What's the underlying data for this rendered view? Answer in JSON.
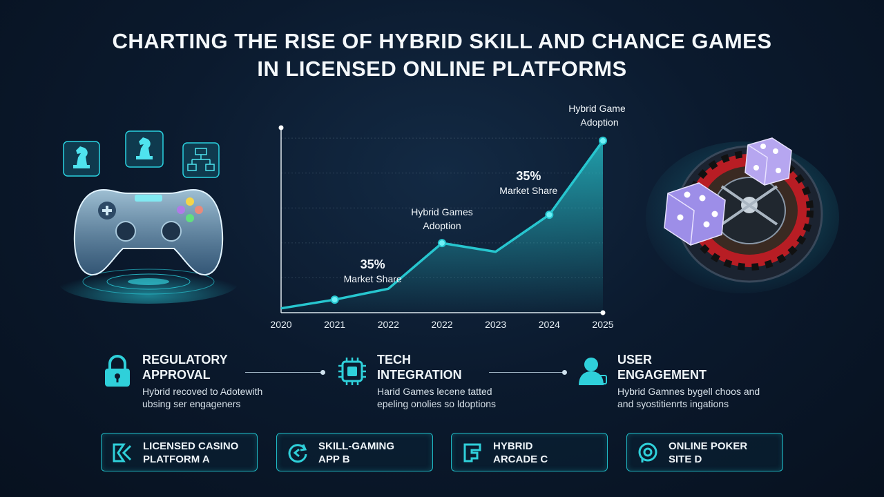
{
  "title": {
    "line1": "CHARTING THE RISE OF HYBRID SKILL AND CHANCE GAMES",
    "line2": "IN LICENSED ONLINE PLATFORMS"
  },
  "chart_data": {
    "type": "area",
    "x": [
      "2020",
      "2021",
      "2022",
      "2022",
      "2023",
      "2024",
      "2025"
    ],
    "values": [
      2,
      6,
      11,
      32,
      28,
      45,
      79
    ],
    "ylim": [
      0,
      85
    ],
    "grid": true,
    "annotations": [
      {
        "text_top": "35%",
        "text_bottom": "Market Share",
        "point_index": 1
      },
      {
        "text_top": "Hybrid Games",
        "text_bottom": "Adoption",
        "point_index": 3
      },
      {
        "text_top": "35%",
        "text_bottom": "Market Share",
        "point_index": 5
      },
      {
        "text_top": "Hybrid Games",
        "text_bottom": "Adoption",
        "point_index": 6
      }
    ],
    "color": "#27c6cf"
  },
  "features": [
    {
      "title_1": "REGULATORY",
      "title_2": "APPROVAL",
      "desc_1": "Hybrid recoved to Adotewith",
      "desc_2": "ubsing ser engageners",
      "icon": "padlock-icon"
    },
    {
      "title_1": "TECH",
      "title_2": "INTEGRATION",
      "desc_1": "Harid Games lecene tatted",
      "desc_2": "epeling onolies so ldoptions",
      "icon": "chip-icon"
    },
    {
      "title_1": "USER",
      "title_2": "ENGAGEMENT",
      "desc_1": "Hybrid Gamnes bygell choos and",
      "desc_2": "and syostitienrts ingations",
      "icon": "user-icon"
    }
  ],
  "platforms": [
    {
      "line1": "LICENSED CASINO",
      "line2": "PLATFORM A",
      "icon": "casino-logo-icon"
    },
    {
      "line1": "SKILL-GAMING",
      "line2": "APP B",
      "icon": "skill-app-logo-icon"
    },
    {
      "line1": "HYBRID",
      "line2": "ARCADE C",
      "icon": "arcade-logo-icon"
    },
    {
      "line1": "ONLINE POKER",
      "line2": "SITE D",
      "icon": "poker-logo-icon"
    }
  ],
  "accent": "#27c6cf"
}
